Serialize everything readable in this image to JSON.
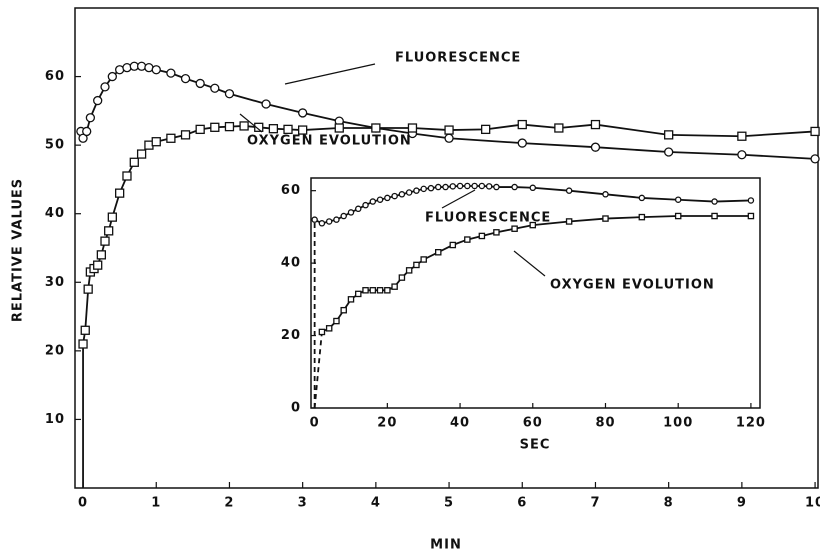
{
  "chart_data": [
    {
      "type": "line",
      "x_label": "MIN",
      "y_label": "RELATIVE VALUES",
      "xlim": [
        -0.11,
        10.04
      ],
      "ylim": [
        0,
        70
      ],
      "xticks": [
        0,
        1,
        2,
        3,
        4,
        5,
        6,
        7,
        8,
        9,
        10
      ],
      "yticks": [
        10,
        20,
        30,
        40,
        50,
        60
      ],
      "series": [
        {
          "name": "FLUORESCENCE",
          "color": "#111111",
          "marker": "circle",
          "x": [
            -0.03,
            0.0,
            0.05,
            0.1,
            0.2,
            0.3,
            0.4,
            0.5,
            0.6,
            0.7,
            0.8,
            0.9,
            1.0,
            1.2,
            1.4,
            1.6,
            1.8,
            2.0,
            2.5,
            3.0,
            3.5,
            4.0,
            4.5,
            5.0,
            6.0,
            7.0,
            8.0,
            9.0,
            10.0
          ],
          "values": [
            52,
            51,
            52,
            54,
            56.5,
            58.5,
            60,
            61,
            61.3,
            61.5,
            61.5,
            61.3,
            61,
            60.5,
            59.7,
            59,
            58.3,
            57.5,
            56,
            54.7,
            53.5,
            52.5,
            51.7,
            51,
            50.3,
            49.7,
            49,
            48.6,
            48
          ]
        },
        {
          "name": "OXYGEN EVOLUTION",
          "color": "#111111",
          "marker": "square",
          "start": {
            "x": 0,
            "y": 0
          },
          "start_line": "solid",
          "x": [
            0.0,
            0.03,
            0.07,
            0.1,
            0.15,
            0.2,
            0.25,
            0.3,
            0.35,
            0.4,
            0.5,
            0.6,
            0.7,
            0.8,
            0.9,
            1.0,
            1.2,
            1.4,
            1.6,
            1.8,
            2.0,
            2.2,
            2.4,
            2.6,
            2.8,
            3.0,
            3.5,
            4.0,
            4.5,
            5.0,
            5.5,
            6.0,
            6.5,
            7.0,
            8.0,
            9.0,
            10.0
          ],
          "values": [
            21,
            23,
            29,
            31.5,
            32,
            32.5,
            34,
            36,
            37.5,
            39.5,
            43,
            45.5,
            47.5,
            48.7,
            50,
            50.5,
            51,
            51.5,
            52.3,
            52.6,
            52.7,
            52.8,
            52.6,
            52.4,
            52.3,
            52.2,
            52.5,
            52.5,
            52.5,
            52.2,
            52.3,
            53,
            52.5,
            53,
            51.5,
            51.3,
            52
          ]
        }
      ]
    },
    {
      "type": "line",
      "x_label": "SEC",
      "xlim": [
        -1,
        122.5
      ],
      "ylim": [
        0,
        63.5
      ],
      "xticks": [
        0,
        20,
        40,
        60,
        80,
        100,
        120
      ],
      "yticks": [
        0,
        20,
        40,
        60
      ],
      "series": [
        {
          "name": "FLUORESCENCE",
          "color": "#111111",
          "marker": "circle",
          "start": {
            "x": 0,
            "y": 0
          },
          "start_line": "dashed",
          "x": [
            0,
            2,
            4,
            6,
            8,
            10,
            12,
            14,
            16,
            18,
            20,
            22,
            24,
            26,
            28,
            30,
            32,
            34,
            36,
            38,
            40,
            42,
            44,
            46,
            48,
            50,
            55,
            60,
            70,
            80,
            90,
            100,
            110,
            120
          ],
          "values": [
            52,
            51,
            51.5,
            52,
            53,
            54,
            55,
            56,
            57,
            57.5,
            58,
            58.5,
            59,
            59.5,
            60,
            60.5,
            60.7,
            61,
            61,
            61.2,
            61.3,
            61.3,
            61.3,
            61.3,
            61.2,
            61,
            61,
            60.8,
            60,
            59,
            58,
            57.5,
            57,
            57.3
          ]
        },
        {
          "name": "OXYGEN EVOLUTION",
          "color": "#111111",
          "marker": "square",
          "start": {
            "x": 0,
            "y": 0
          },
          "start_line": "dashed",
          "x": [
            2,
            4,
            6,
            8,
            10,
            12,
            14,
            16,
            18,
            20,
            22,
            24,
            26,
            28,
            30,
            34,
            38,
            42,
            46,
            50,
            55,
            60,
            70,
            80,
            90,
            100,
            110,
            120
          ],
          "values": [
            21,
            22,
            24,
            27,
            30,
            31.5,
            32.5,
            32.5,
            32.5,
            32.5,
            33.5,
            36,
            38,
            39.5,
            41,
            43,
            45,
            46.5,
            47.5,
            48.5,
            49.5,
            50.5,
            51.5,
            52.3,
            52.7,
            53,
            53,
            53
          ]
        }
      ]
    }
  ]
}
